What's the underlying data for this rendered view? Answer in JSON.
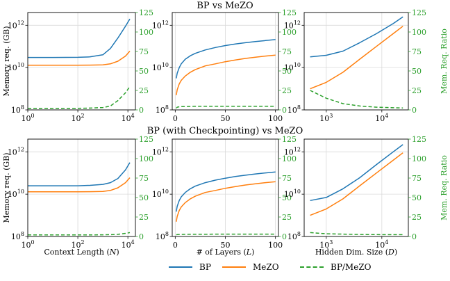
{
  "figure": {
    "row_titles": [
      "BP vs MeZO",
      "BP (with Checkpointing) vs MeZO"
    ],
    "legend": {
      "bp": "BP",
      "mezo": "MeZO",
      "ratio": "BP/MeZO"
    }
  },
  "colors": {
    "bp": "#1f77b4",
    "mezo": "#ff7f0e",
    "ratio": "#2ca02c",
    "grid": "#d9d9d9"
  },
  "chart_data": [
    {
      "type": "line",
      "row": 0,
      "col": 0,
      "xscale": "log",
      "yscale": "log",
      "xlim": [
        1,
        20000
      ],
      "ylim": [
        100000000.0,
        4000000000000.0
      ],
      "y2lim": [
        0,
        125
      ],
      "xlabel": "",
      "ylabel": "Memory req. (GB)",
      "y2label": "",
      "xticks": [
        1,
        100,
        10000
      ],
      "xtick_labels": [
        "10^0",
        "10^2",
        "10^4"
      ],
      "yticks": [
        100000000.0,
        10000000000.0,
        1000000000000.0
      ],
      "ytick_labels": [
        "10^8",
        "10^10",
        "10^12"
      ],
      "y2ticks": [
        0,
        25,
        50,
        75,
        100,
        125
      ],
      "y2tick_labels": [
        "0",
        "25",
        "50",
        "75",
        "100",
        "125"
      ],
      "grid": true,
      "x": [
        1,
        10,
        100,
        300,
        1000,
        2000,
        4000,
        8000,
        12000
      ],
      "series": [
        {
          "key": "bp",
          "axis": "left",
          "values": [
            30000000000.0,
            30000000000.0,
            30500000000.0,
            32000000000.0,
            40000000000.0,
            80000000000.0,
            250000000000.0,
            900000000000.0,
            2000000000000.0
          ]
        },
        {
          "key": "mezo",
          "axis": "left",
          "values": [
            13000000000.0,
            13000000000.0,
            13000000000.0,
            13100000000.0,
            13500000000.0,
            15000000000.0,
            20000000000.0,
            35000000000.0,
            60000000000.0
          ]
        },
        {
          "key": "ratio",
          "axis": "right",
          "values": [
            2,
            2,
            2,
            2.3,
            3,
            5,
            12,
            22,
            30
          ]
        }
      ]
    },
    {
      "type": "line",
      "row": 0,
      "col": 1,
      "xscale": "linear",
      "yscale": "log",
      "xlim": [
        -3,
        103
      ],
      "ylim": [
        100000000.0,
        4000000000000.0
      ],
      "y2lim": [
        0,
        125
      ],
      "xlabel": "",
      "ylabel": "",
      "y2label": "",
      "xticks": [
        0,
        50,
        100
      ],
      "xtick_labels": [
        "0",
        "50",
        "100"
      ],
      "yticks": [
        100000000.0,
        10000000000.0,
        1000000000000.0
      ],
      "ytick_labels": [
        "10^8",
        "10^10",
        "10^12"
      ],
      "y2ticks": [
        0,
        25,
        50,
        75,
        100,
        125
      ],
      "y2tick_labels": [
        "0",
        "25",
        "50",
        "75",
        "100",
        "125"
      ],
      "grid": true,
      "x": [
        1,
        2,
        4,
        6,
        10,
        15,
        20,
        30,
        40,
        50,
        60,
        70,
        80,
        90,
        100
      ],
      "series": [
        {
          "key": "bp",
          "axis": "left",
          "values": [
            3100000000.0,
            5500000000.0,
            10000000000.0,
            15000000000.0,
            25000000000.0,
            36000000000.0,
            47000000000.0,
            68000000000.0,
            89000000000.0,
            110000000000.0,
            130000000000.0,
            150000000000.0,
            170000000000.0,
            190000000000.0,
            210000000000.0
          ]
        },
        {
          "key": "mezo",
          "axis": "left",
          "values": [
            500000000.0,
            900000000.0,
            1700000000.0,
            2500000000.0,
            4000000000.0,
            6000000000.0,
            8000000000.0,
            12000000000.0,
            15000000000.0,
            19000000000.0,
            23000000000.0,
            27000000000.0,
            31000000000.0,
            35000000000.0,
            39000000000.0
          ]
        },
        {
          "key": "ratio",
          "axis": "right",
          "values": [
            2.2,
            3.5,
            4,
            4.2,
            4.4,
            4.5,
            4.6,
            4.6,
            4.7,
            4.7,
            4.7,
            4.7,
            4.7,
            4.7,
            4.7
          ]
        }
      ]
    },
    {
      "type": "line",
      "row": 0,
      "col": 2,
      "xscale": "log",
      "yscale": "log",
      "xlim": [
        400,
        30000
      ],
      "ylim": [
        100000000.0,
        4000000000000.0
      ],
      "y2lim": [
        0,
        125
      ],
      "xlabel": "",
      "ylabel": "",
      "y2label": "Mem. Req. Ratio",
      "xticks": [
        1000,
        10000
      ],
      "xtick_labels": [
        "10^3",
        "10^4"
      ],
      "yticks": [
        100000000.0,
        10000000000.0,
        1000000000000.0
      ],
      "ytick_labels": [
        "10^8",
        "10^10",
        "10^12"
      ],
      "y2ticks": [
        0,
        25,
        50,
        75,
        100,
        125
      ],
      "y2tick_labels": [
        "0",
        "25",
        "50",
        "75",
        "100",
        "125"
      ],
      "grid": true,
      "x": [
        512,
        1000,
        2000,
        4000,
        8000,
        16000,
        24000
      ],
      "series": [
        {
          "key": "bp",
          "axis": "left",
          "values": [
            32000000000.0,
            38000000000.0,
            60000000000.0,
            150000000000.0,
            400000000000.0,
            1200000000000.0,
            2500000000000.0
          ]
        },
        {
          "key": "mezo",
          "axis": "left",
          "values": [
            1000000000.0,
            2000000000.0,
            6000000000.0,
            25000000000.0,
            100000000000.0,
            400000000000.0,
            900000000000.0
          ]
        },
        {
          "key": "ratio",
          "axis": "right",
          "values": [
            25,
            15,
            8,
            5,
            3.5,
            2.8,
            2.5
          ]
        }
      ]
    },
    {
      "type": "line",
      "row": 1,
      "col": 0,
      "xscale": "log",
      "yscale": "log",
      "xlim": [
        1,
        20000
      ],
      "ylim": [
        100000000.0,
        4000000000000.0
      ],
      "y2lim": [
        0,
        125
      ],
      "xlabel": "Context Length (N)",
      "ylabel": "Memory req. (GB)",
      "y2label": "",
      "xticks": [
        1,
        100,
        10000
      ],
      "xtick_labels": [
        "10^0",
        "10^2",
        "10^4"
      ],
      "yticks": [
        100000000.0,
        10000000000.0,
        1000000000000.0
      ],
      "ytick_labels": [
        "10^8",
        "10^10",
        "10^12"
      ],
      "y2ticks": [
        0,
        25,
        50,
        75,
        100,
        125
      ],
      "y2tick_labels": [
        "0",
        "25",
        "50",
        "75",
        "100",
        "125"
      ],
      "grid": true,
      "x": [
        1,
        10,
        100,
        300,
        1000,
        2000,
        4000,
        8000,
        12000
      ],
      "series": [
        {
          "key": "bp",
          "axis": "left",
          "values": [
            25000000000.0,
            25000000000.0,
            25000000000.0,
            26000000000.0,
            29000000000.0,
            35000000000.0,
            55000000000.0,
            140000000000.0,
            310000000000.0
          ]
        },
        {
          "key": "mezo",
          "axis": "left",
          "values": [
            13000000000.0,
            13000000000.0,
            13000000000.0,
            13100000000.0,
            13500000000.0,
            15000000000.0,
            20000000000.0,
            35000000000.0,
            60000000000.0
          ]
        },
        {
          "key": "ratio",
          "axis": "right",
          "values": [
            2,
            2,
            2,
            2,
            2.1,
            2.3,
            2.8,
            4,
            5
          ]
        }
      ]
    },
    {
      "type": "line",
      "row": 1,
      "col": 1,
      "xscale": "linear",
      "yscale": "log",
      "xlim": [
        -3,
        103
      ],
      "ylim": [
        100000000.0,
        4000000000000.0
      ],
      "y2lim": [
        0,
        125
      ],
      "xlabel": "# of Layers (L)",
      "ylabel": "",
      "y2label": "",
      "xticks": [
        0,
        50,
        100
      ],
      "xtick_labels": [
        "0",
        "50",
        "100"
      ],
      "yticks": [
        100000000.0,
        10000000000.0,
        1000000000000.0
      ],
      "ytick_labels": [
        "10^8",
        "10^10",
        "10^12"
      ],
      "y2ticks": [
        0,
        25,
        50,
        75,
        100,
        125
      ],
      "y2tick_labels": [
        "0",
        "25",
        "50",
        "75",
        "100",
        "125"
      ],
      "grid": true,
      "x": [
        1,
        2,
        4,
        6,
        10,
        15,
        20,
        30,
        40,
        50,
        60,
        70,
        80,
        90,
        100
      ],
      "series": [
        {
          "key": "bp",
          "axis": "left",
          "values": [
            1500000000.0,
            2700000000.0,
            5000000000.0,
            7500000000.0,
            12000000000.0,
            18000000000.0,
            24000000000.0,
            35000000000.0,
            46000000000.0,
            57000000000.0,
            68000000000.0,
            79000000000.0,
            90000000000.0,
            101000000000.0,
            112000000000.0
          ]
        },
        {
          "key": "mezo",
          "axis": "left",
          "values": [
            500000000.0,
            900000000.0,
            1700000000.0,
            2500000000.0,
            4000000000.0,
            6000000000.0,
            8000000000.0,
            12000000000.0,
            15000000000.0,
            19000000000.0,
            23000000000.0,
            27000000000.0,
            31000000000.0,
            35000000000.0,
            39000000000.0
          ]
        },
        {
          "key": "ratio",
          "axis": "right",
          "values": [
            2.2,
            2.4,
            2.6,
            2.7,
            2.8,
            2.9,
            2.9,
            2.9,
            3,
            3,
            3,
            3,
            3,
            3,
            3
          ]
        }
      ]
    },
    {
      "type": "line",
      "row": 1,
      "col": 2,
      "xscale": "log",
      "yscale": "log",
      "xlim": [
        400,
        30000
      ],
      "ylim": [
        100000000.0,
        4000000000000.0
      ],
      "y2lim": [
        0,
        125
      ],
      "xlabel": "Hidden Dim. Size (D)",
      "ylabel": "",
      "y2label": "Mem. Req. Ratio",
      "xticks": [
        1000,
        10000
      ],
      "xtick_labels": [
        "10^3",
        "10^4"
      ],
      "yticks": [
        100000000.0,
        10000000000.0,
        1000000000000.0
      ],
      "ytick_labels": [
        "10^8",
        "10^10",
        "10^12"
      ],
      "y2ticks": [
        0,
        25,
        50,
        75,
        100,
        125
      ],
      "y2tick_labels": [
        "0",
        "25",
        "50",
        "75",
        "100",
        "125"
      ],
      "grid": true,
      "x": [
        512,
        1000,
        2000,
        4000,
        8000,
        16000,
        24000
      ],
      "series": [
        {
          "key": "bp",
          "axis": "left",
          "values": [
            5000000000.0,
            7000000000.0,
            18000000000.0,
            60000000000.0,
            250000000000.0,
            1000000000000.0,
            2200000000000.0
          ]
        },
        {
          "key": "mezo",
          "axis": "left",
          "values": [
            1000000000.0,
            2000000000.0,
            6000000000.0,
            25000000000.0,
            100000000000.0,
            400000000000.0,
            900000000000.0
          ]
        },
        {
          "key": "ratio",
          "axis": "right",
          "values": [
            5,
            3.5,
            3,
            2.6,
            2.4,
            2.3,
            2.3
          ]
        }
      ]
    }
  ]
}
